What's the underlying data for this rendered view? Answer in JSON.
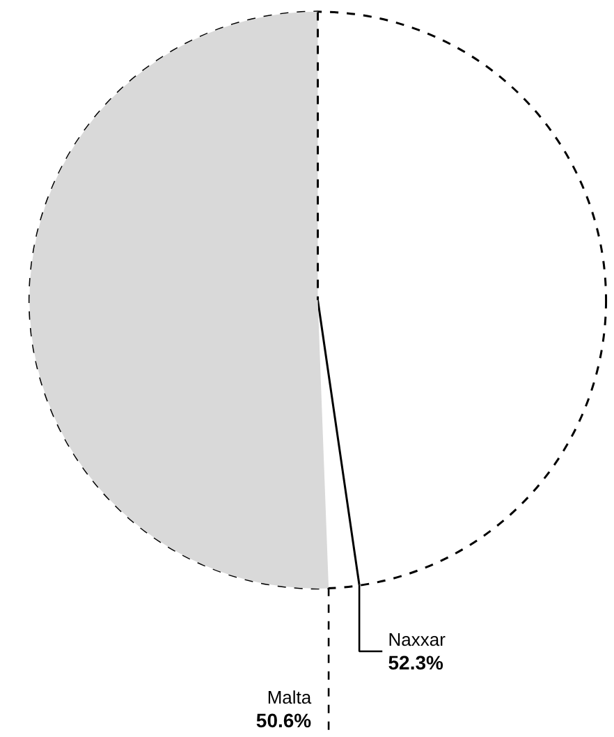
{
  "chart_data": {
    "type": "other",
    "series": [
      {
        "name": "Naxxar",
        "type": "line",
        "color": "#000000",
        "values": [
          52.3
        ],
        "value_labels": [
          "52.3%"
        ]
      },
      {
        "name": "Malta",
        "values": [
          50.6
        ],
        "value_labels": [
          "50.6%"
        ]
      }
    ]
  }
}
